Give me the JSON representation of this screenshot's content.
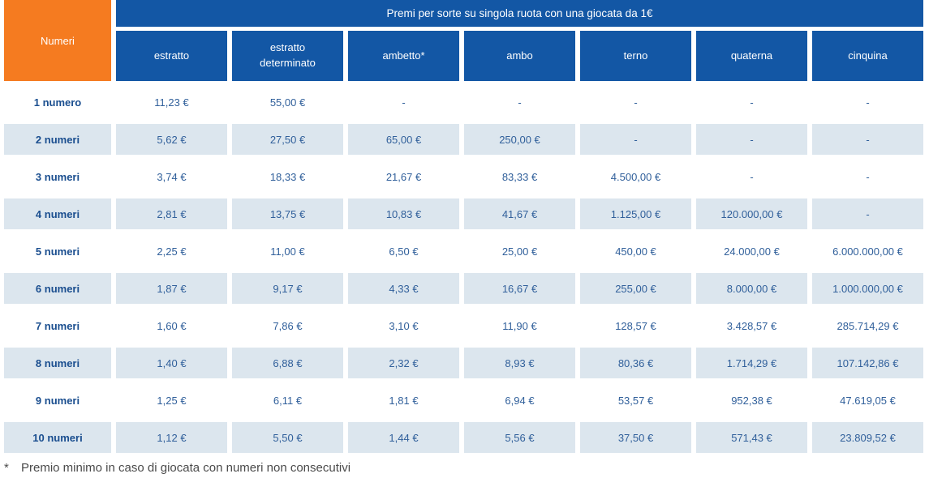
{
  "header": {
    "corner_label": "Numeri",
    "title": "Premi per sorte su singola ruota con una giocata da 1€",
    "columns": [
      "estratto",
      "estratto determinato",
      "ambetto*",
      "ambo",
      "terno",
      "quaterna",
      "cinquina"
    ]
  },
  "rows": [
    {
      "label": "1 numero",
      "values": [
        "11,23 €",
        "55,00 €",
        "-",
        "-",
        "-",
        "-",
        "-"
      ]
    },
    {
      "label": "2 numeri",
      "values": [
        "5,62 €",
        "27,50 €",
        "65,00 €",
        "250,00 €",
        "-",
        "-",
        "-"
      ]
    },
    {
      "label": "3 numeri",
      "values": [
        "3,74 €",
        "18,33 €",
        "21,67 €",
        "83,33 €",
        "4.500,00 €",
        "-",
        "-"
      ]
    },
    {
      "label": "4 numeri",
      "values": [
        "2,81 €",
        "13,75 €",
        "10,83 €",
        "41,67 €",
        "1.125,00 €",
        "120.000,00 €",
        "-"
      ]
    },
    {
      "label": "5 numeri",
      "values": [
        "2,25 €",
        "11,00 €",
        "6,50 €",
        "25,00 €",
        "450,00 €",
        "24.000,00 €",
        "6.000.000,00 €"
      ]
    },
    {
      "label": "6 numeri",
      "values": [
        "1,87 €",
        "9,17 €",
        "4,33 €",
        "16,67 €",
        "255,00 €",
        "8.000,00 €",
        "1.000.000,00 €"
      ]
    },
    {
      "label": "7 numeri",
      "values": [
        "1,60 €",
        "7,86 €",
        "3,10 €",
        "11,90 €",
        "128,57 €",
        "3.428,57 €",
        "285.714,29 €"
      ]
    },
    {
      "label": "8 numeri",
      "values": [
        "1,40 €",
        "6,88 €",
        "2,32 €",
        "8,93 €",
        "80,36 €",
        "1.714,29 €",
        "107.142,86 €"
      ]
    },
    {
      "label": "9 numeri",
      "values": [
        "1,25 €",
        "6,11 €",
        "1,81 €",
        "6,94 €",
        "53,57 €",
        "952,38 €",
        "47.619,05 €"
      ]
    },
    {
      "label": "10 numeri",
      "values": [
        "1,12 €",
        "5,50 €",
        "1,44 €",
        "5,56 €",
        "37,50 €",
        "571,43 €",
        "23.809,52 €"
      ]
    }
  ],
  "footnote": {
    "marker": "*",
    "text": "Premio minimo in caso di giocata con numeri non consecutivi"
  },
  "colors": {
    "orange": "#f57b20",
    "blue": "#1357a5",
    "stripe": "#dce6ee",
    "label_text": "#1a4e8f",
    "value_text": "#31609b",
    "footnote_text": "#4a4a4a"
  }
}
